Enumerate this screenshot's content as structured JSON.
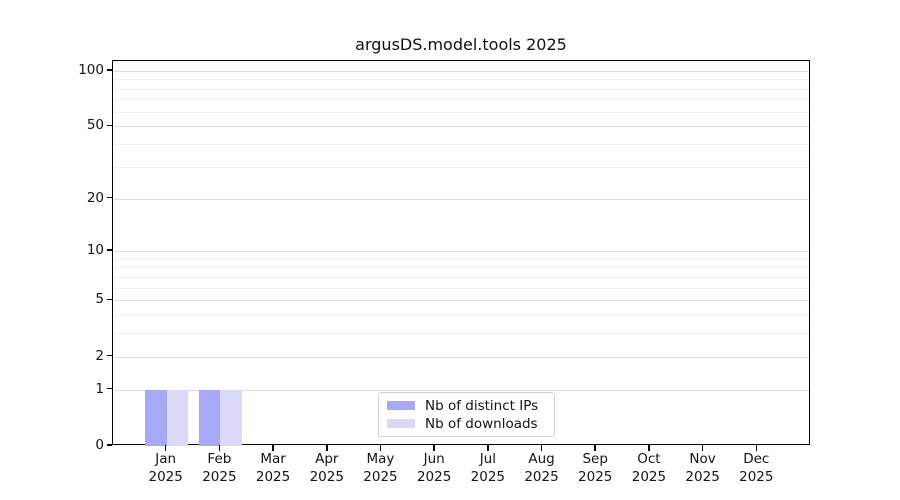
{
  "title": "argusDS.model.tools 2025",
  "legend": {
    "position": "lower center",
    "items": [
      {
        "label": "Nb of distinct IPs",
        "color": "#a8a8f8"
      },
      {
        "label": "Nb of downloads",
        "color": "#dadaf8"
      }
    ]
  },
  "colors": {
    "background": "#ffffff",
    "axis": "#000000",
    "text": "#151515",
    "gridline_major": "#dcdcdc",
    "gridline_minor": "#f0f0f0",
    "series_dark": "#a8a8f8",
    "series_light": "#dadaf8"
  },
  "chart_data": {
    "type": "bar",
    "title": "argusDS.model.tools 2025",
    "xlabel": "",
    "ylabel": "",
    "categories": [
      "Jan 2025",
      "Feb 2025",
      "Mar 2025",
      "Apr 2025",
      "May 2025",
      "Jun 2025",
      "Jul 2025",
      "Aug 2025",
      "Sep 2025",
      "Oct 2025",
      "Nov 2025",
      "Dec 2025"
    ],
    "series": [
      {
        "name": "Nb of distinct IPs",
        "color": "#a8a8f8",
        "values": [
          1,
          1,
          0,
          0,
          0,
          0,
          0,
          0,
          0,
          0,
          0,
          0
        ]
      },
      {
        "name": "Nb of downloads",
        "color": "#dadaf8",
        "values": [
          1,
          1,
          0,
          0,
          0,
          0,
          0,
          0,
          0,
          0,
          0,
          0
        ]
      }
    ],
    "yscale": "log1p",
    "ylim": [
      0,
      113
    ],
    "yticks": [
      0,
      1,
      2,
      5,
      10,
      20,
      50,
      100
    ],
    "minor_gridlines": [
      3,
      4,
      6,
      7,
      8,
      9,
      30,
      40,
      60,
      70,
      80,
      90
    ],
    "grid": "horizontal",
    "legend_position": "lower center"
  }
}
